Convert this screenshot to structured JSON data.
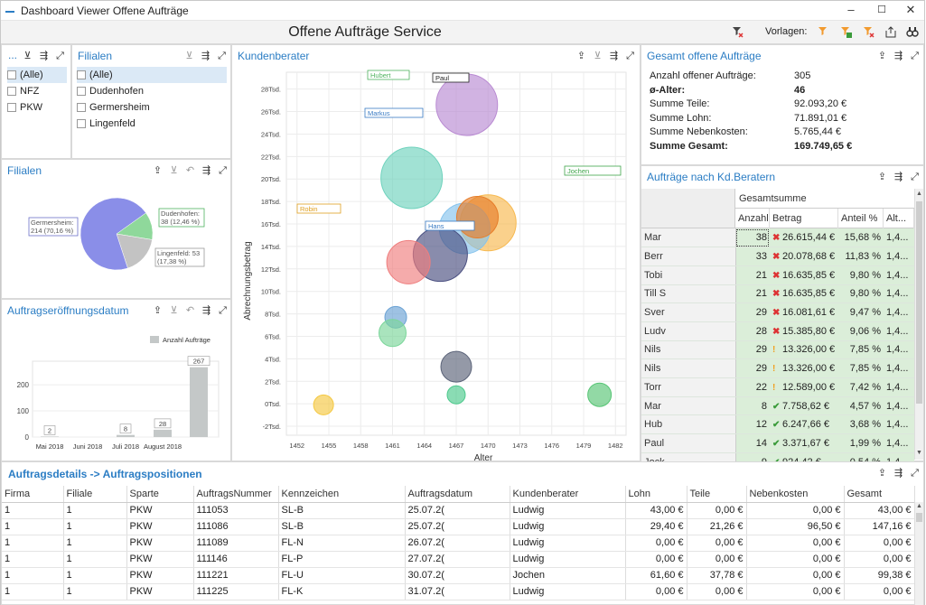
{
  "window": {
    "title": "Dashboard Viewer Offene Aufträge",
    "btn_min": "–",
    "btn_max": "☐",
    "btn_close": "✕"
  },
  "toolbar": {
    "title": "Offene Aufträge Service",
    "vorlagen_label": "Vorlagen:"
  },
  "filter_top": {
    "ellipsis": "...",
    "items": [
      "(Alle)",
      "NFZ",
      "PKW"
    ]
  },
  "filialen_filter": {
    "title": "Filialen",
    "items": [
      "(Alle)",
      "Dudenhofen",
      "Germersheim",
      "Lingenfeld"
    ]
  },
  "pie": {
    "title": "Filialen",
    "labels": [
      "Germersheim:\n214 (70,16 %)",
      "Dudenhofen:\n38 (12,46 %)",
      "Lingenfeld: 53\n(17,38 %)"
    ],
    "chart_data": {
      "type": "pie",
      "categories": [
        "Germersheim",
        "Dudenhofen",
        "Lingenfeld"
      ],
      "values": [
        214,
        38,
        53
      ],
      "percent": [
        70.16,
        12.46,
        17.38
      ],
      "colors": [
        "#8a8ee8",
        "#8fd89b",
        "#c3c3c3"
      ]
    }
  },
  "bar": {
    "title": "Auftragseröffnungsdatum",
    "legend": "Anzahl Aufträge",
    "chart_data": {
      "type": "bar",
      "categories": [
        "Mai 2018",
        "Juni 2018",
        "Juli 2018",
        "August 2018",
        ""
      ],
      "values": [
        2,
        0,
        8,
        28,
        267
      ],
      "labels": [
        "2",
        "",
        "8",
        "28",
        "267"
      ],
      "yticks": [
        "0",
        "100",
        "200"
      ],
      "ylim": [
        0,
        290
      ],
      "color": "#c4c8c8"
    }
  },
  "bubble": {
    "title": "Kundenberater",
    "xlabel": "Alter",
    "ylabel": "Abrechnungsbetrag",
    "chart_data": {
      "type": "scatter",
      "xticks": [
        "1452",
        "1455",
        "1458",
        "1461",
        "1464",
        "1467",
        "1470",
        "1473",
        "1476",
        "1479",
        "1482"
      ],
      "yticks": [
        "-2Tsd.",
        "0Tsd.",
        "2Tsd.",
        "4Tsd.",
        "6Tsd.",
        "8Tsd.",
        "10Tsd.",
        "12Tsd.",
        "14Tsd.",
        "16Tsd.",
        "18Tsd.",
        "20Tsd.",
        "22Tsd.",
        "24Tsd.",
        "26Tsd.",
        "28Tsd."
      ],
      "xlim": [
        1451,
        1483
      ],
      "ylim": [
        -2.8,
        29.5
      ],
      "points": [
        {
          "x": 1468.0,
          "y": 26.6,
          "size": 34,
          "color": "#b98ad2"
        },
        {
          "x": 1462.8,
          "y": 20.1,
          "size": 34,
          "color": "#6fd2bd"
        },
        {
          "x": 1470.0,
          "y": 16.1,
          "size": 31,
          "color": "#f7b94f"
        },
        {
          "x": 1467.8,
          "y": 15.6,
          "size": 28,
          "color": "#86c3ec"
        },
        {
          "x": 1469.0,
          "y": 16.6,
          "size": 23,
          "color": "#e67d2a"
        },
        {
          "x": 1465.5,
          "y": 13.3,
          "size": 30,
          "color": "#4a4f80"
        },
        {
          "x": 1462.5,
          "y": 12.6,
          "size": 24,
          "color": "#ef7e7e"
        },
        {
          "x": 1461.3,
          "y": 7.7,
          "size": 12,
          "color": "#6aa2d4"
        },
        {
          "x": 1461.0,
          "y": 6.3,
          "size": 15,
          "color": "#7bd69a"
        },
        {
          "x": 1467.0,
          "y": 3.3,
          "size": 17,
          "color": "#5a6278"
        },
        {
          "x": 1467.0,
          "y": 0.8,
          "size": 10,
          "color": "#4cc98c"
        },
        {
          "x": 1480.5,
          "y": 0.8,
          "size": 13,
          "color": "#57c575"
        },
        {
          "x": 1454.5,
          "y": -0.1,
          "size": 11,
          "color": "#f4c842"
        }
      ],
      "names": [
        "Hubert",
        "Paul",
        "Markus",
        "Jochen",
        "Robin",
        "Hans"
      ]
    }
  },
  "gesamt": {
    "title": "Gesamt offene Aufträge",
    "rows": [
      {
        "k": "Anzahl offener Aufträge:",
        "v": "305",
        "bold": false
      },
      {
        "k": "ø-Alter:",
        "v": "46",
        "bold": true
      },
      {
        "k": "Summe Teile:",
        "v": "92.093,20 €",
        "bold": false
      },
      {
        "k": "Summe Lohn:",
        "v": "71.891,01 €",
        "bold": false
      },
      {
        "k": "Summe Nebenkosten:",
        "v": "5.765,44 €",
        "bold": false
      },
      {
        "k": "Summe Gesamt:",
        "v": "169.749,65 €",
        "bold": true
      }
    ]
  },
  "kdb": {
    "title": "Aufträge nach Kd.Beratern",
    "group": "Gesamtsumme",
    "cols": [
      "Anzahl",
      "Betrag",
      "Anteil %",
      "Alt..."
    ],
    "rows": [
      {
        "n": "Mar",
        "a": "38",
        "i": "x",
        "b": "26.615,44 €",
        "p": "15,68 %",
        "al": "1,4..."
      },
      {
        "n": "Berr",
        "a": "33",
        "i": "x",
        "b": "20.078,68 €",
        "p": "11,83 %",
        "al": "1,4..."
      },
      {
        "n": "Tobi",
        "a": "21",
        "i": "x",
        "b": "16.635,85 €",
        "p": "9,80 %",
        "al": "1,4..."
      },
      {
        "n": "Till S",
        "a": "21",
        "i": "x",
        "b": "16.635,85 €",
        "p": "9,80 %",
        "al": "1,4..."
      },
      {
        "n": "Sver",
        "a": "29",
        "i": "x",
        "b": "16.081,61 €",
        "p": "9,47 %",
        "al": "1,4..."
      },
      {
        "n": "Ludv",
        "a": "28",
        "i": "x",
        "b": "15.385,80 €",
        "p": "9,06 %",
        "al": "1,4..."
      },
      {
        "n": "Nils",
        "a": "29",
        "i": "!",
        "b": "13.326,00 €",
        "p": "7,85 %",
        "al": "1,4..."
      },
      {
        "n": "Nils",
        "a": "29",
        "i": "!",
        "b": "13.326,00 €",
        "p": "7,85 %",
        "al": "1,4..."
      },
      {
        "n": "Torr",
        "a": "22",
        "i": "!",
        "b": "12.589,00 €",
        "p": "7,42 %",
        "al": "1,4..."
      },
      {
        "n": "Mar",
        "a": "8",
        "i": "v",
        "b": "7.758,62 €",
        "p": "4,57 %",
        "al": "1,4..."
      },
      {
        "n": "Hub",
        "a": "12",
        "i": "v",
        "b": "6.247,66 €",
        "p": "3,68 %",
        "al": "1,4..."
      },
      {
        "n": "Paul",
        "a": "14",
        "i": "v",
        "b": "3.371,67 €",
        "p": "1,99 %",
        "al": "1,4..."
      },
      {
        "n": "Jock",
        "a": "9",
        "i": "v",
        "b": "924,42 €",
        "p": "0,54 %",
        "al": "1,4..."
      }
    ]
  },
  "details": {
    "title": "Auftragsdetails -> Auftragspositionen",
    "cols": [
      "Firma",
      "Filiale",
      "Sparte",
      "AuftragsNummer",
      "Kennzeichen",
      "Auftragsdatum",
      "Kundenberater",
      "Lohn",
      "Teile",
      "Nebenkosten",
      "Gesamt"
    ],
    "rows": [
      [
        "1",
        "1",
        "PKW",
        "111053",
        "SL-B",
        "25.07.2(",
        "Ludwig",
        "43,00 €",
        "0,00 €",
        "0,00 €",
        "43,00 €"
      ],
      [
        "1",
        "1",
        "PKW",
        "111086",
        "SL-B",
        "25.07.2(",
        "Ludwig",
        "29,40 €",
        "21,26 €",
        "96,50 €",
        "147,16 €"
      ],
      [
        "1",
        "1",
        "PKW",
        "111089",
        "FL-N",
        "26.07.2(",
        "Ludwig",
        "0,00 €",
        "0,00 €",
        "0,00 €",
        "0,00 €"
      ],
      [
        "1",
        "1",
        "PKW",
        "111146",
        "FL-P",
        "27.07.2(",
        "Ludwig",
        "0,00 €",
        "0,00 €",
        "0,00 €",
        "0,00 €"
      ],
      [
        "1",
        "1",
        "PKW",
        "111221",
        "FL-U",
        "30.07.2(",
        "Jochen",
        "61,60 €",
        "37,78 €",
        "0,00 €",
        "99,38 €"
      ],
      [
        "1",
        "1",
        "PKW",
        "111225",
        "FL-K",
        "31.07.2(",
        "Ludwig",
        "0,00 €",
        "0,00 €",
        "0,00 €",
        "0,00 €"
      ]
    ]
  }
}
